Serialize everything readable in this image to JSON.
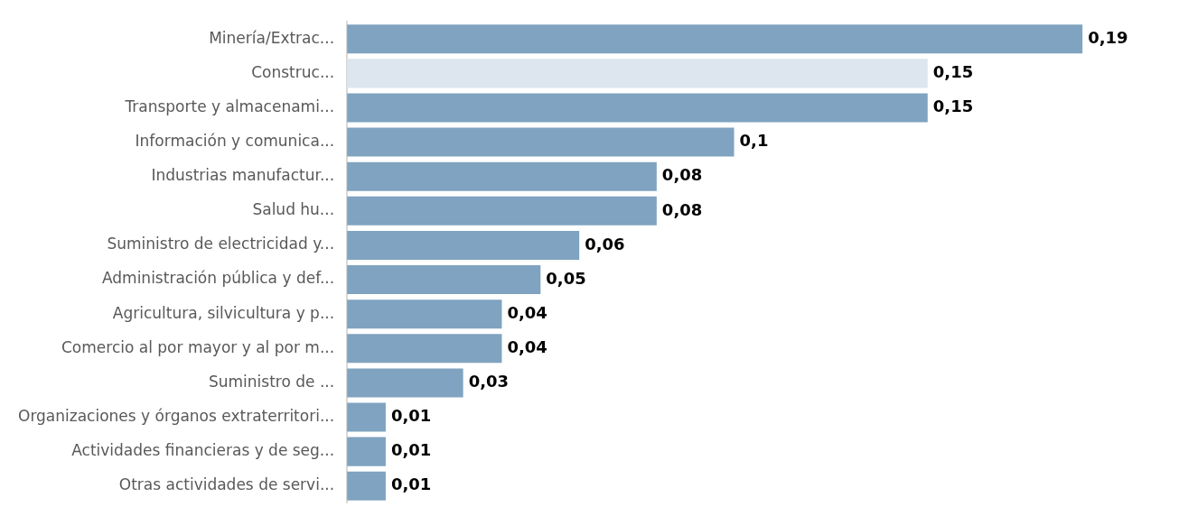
{
  "chart_data": {
    "type": "bar",
    "orientation": "horizontal",
    "categories": [
      "Minería/Extrac...",
      "Construc...",
      "Transporte y almacenami...",
      "Información y comunica...",
      "Industrias manufactur...",
      "Salud hu...",
      "Suministro de electricidad y...",
      "Administración pública y def...",
      "Agricultura, silvicultura y p...",
      "Comercio al por mayor y al por m...",
      "Suministro de ...",
      "Organizaciones y órganos extraterritori...",
      "Actividades financieras y de seg...",
      "Otras actividades de servi..."
    ],
    "values": [
      0.19,
      0.15,
      0.15,
      0.1,
      0.08,
      0.08,
      0.06,
      0.05,
      0.04,
      0.04,
      0.03,
      0.01,
      0.01,
      0.01
    ],
    "colors": [
      "#7fa3c0",
      "#dde5ee",
      "#7fa3c0",
      "#7fa3c0",
      "#7fa3c0",
      "#7fa3c0",
      "#7fa3c0",
      "#7fa3c0",
      "#7fa3c0",
      "#7fa3c0",
      "#7fa3c0",
      "#7fa3c0",
      "#7fa3c0",
      "#7fa3c0"
    ],
    "value_labels": [
      "0,19",
      "0,15",
      "0,15",
      "0,1",
      "0,08",
      "0,08",
      "0,06",
      "0,05",
      "0,04",
      "0,04",
      "0,03",
      "0,01",
      "0,01",
      "0,01"
    ],
    "tick_labels": "y",
    "grid": false,
    "legend": false
  }
}
